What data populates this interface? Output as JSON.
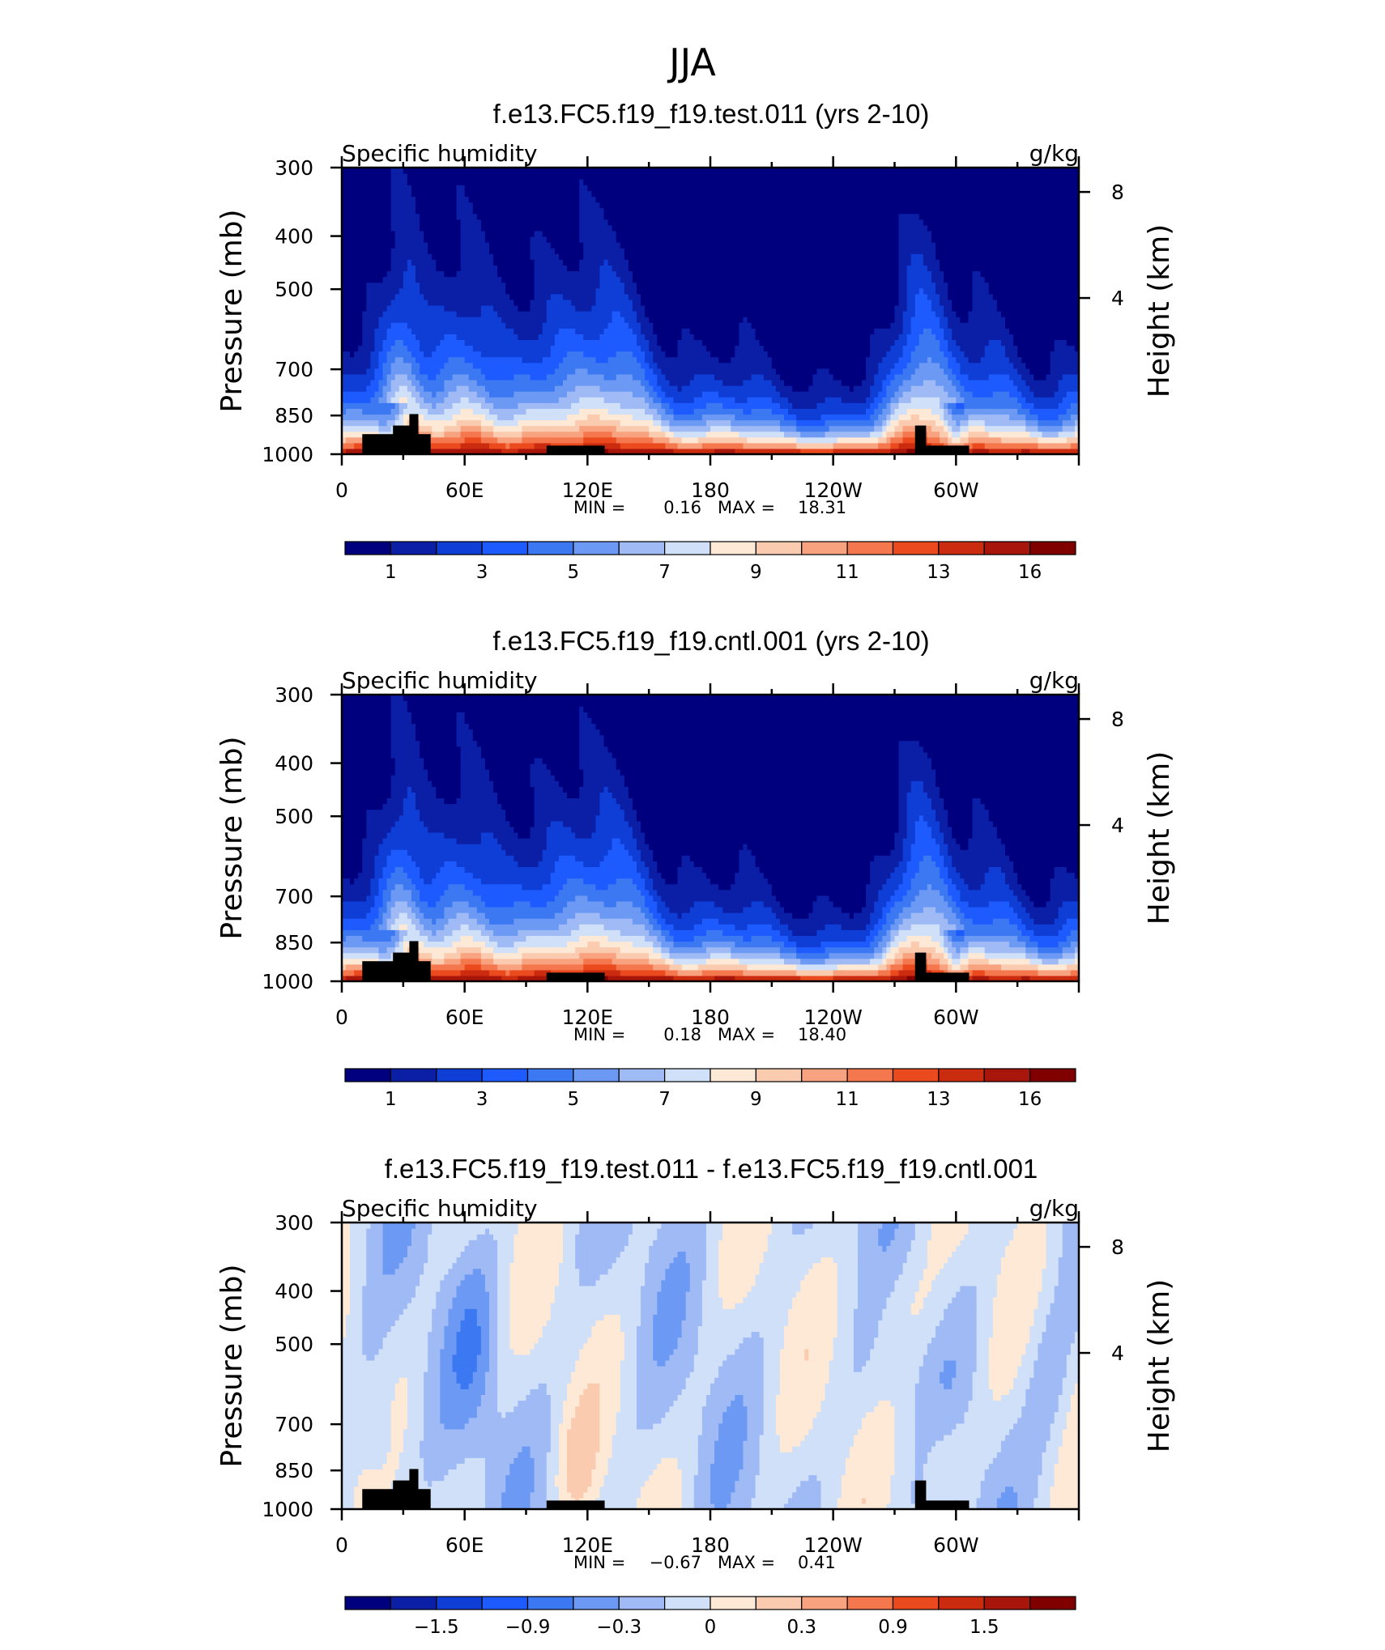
{
  "page": {
    "title": "JJA",
    "palette": [
      "#00007f",
      "#0b1fa6",
      "#0f3ed6",
      "#1e5bff",
      "#3b78f2",
      "#6c99f3",
      "#9fbaf5",
      "#cfe0f8",
      "#fde9d6",
      "#fbcbb0",
      "#f8a27f",
      "#f5774e",
      "#ea4a1e",
      "#cb2b0f",
      "#a8150a",
      "#800000"
    ]
  },
  "chart_data": [
    {
      "type": "heatmap",
      "title": "f.e13.FC5.f19_f19.test.011 (yrs 2-10)",
      "variable_label": "Specific humidity",
      "units_label": "g/kg",
      "ylabel": "Pressure (mb)",
      "y2label": "Height (km)",
      "x_ticks": [
        "0",
        "60E",
        "120E",
        "180",
        "120W",
        "60W"
      ],
      "y_ticks": [
        "300",
        "400",
        "500",
        "700",
        "850",
        "1000"
      ],
      "y2_ticks": [
        "8",
        "4"
      ],
      "stats": {
        "min_label": "MIN =",
        "min": "0.16",
        "max_label": "MAX =",
        "max": "18.31"
      },
      "colorbar": {
        "levels": 16,
        "labels": [
          "1",
          "3",
          "5",
          "7",
          "9",
          "11",
          "13",
          "16"
        ]
      },
      "field": "specific_humidity"
    },
    {
      "type": "heatmap",
      "title": "f.e13.FC5.f19_f19.cntl.001 (yrs 2-10)",
      "variable_label": "Specific humidity",
      "units_label": "g/kg",
      "ylabel": "Pressure (mb)",
      "y2label": "Height (km)",
      "x_ticks": [
        "0",
        "60E",
        "120E",
        "180",
        "120W",
        "60W"
      ],
      "y_ticks": [
        "300",
        "400",
        "500",
        "700",
        "850",
        "1000"
      ],
      "y2_ticks": [
        "8",
        "4"
      ],
      "stats": {
        "min_label": "MIN =",
        "min": "0.18",
        "max_label": "MAX =",
        "max": "18.40"
      },
      "colorbar": {
        "levels": 16,
        "labels": [
          "1",
          "3",
          "5",
          "7",
          "9",
          "11",
          "13",
          "16"
        ]
      },
      "field": "specific_humidity"
    },
    {
      "type": "heatmap",
      "title": "f.e13.FC5.f19_f19.test.011 - f.e13.FC5.f19_f19.cntl.001",
      "variable_label": "Specific humidity",
      "units_label": "g/kg",
      "ylabel": "Pressure (mb)",
      "y2label": "Height (km)",
      "x_ticks": [
        "0",
        "60E",
        "120E",
        "180",
        "120W",
        "60W"
      ],
      "y_ticks": [
        "300",
        "400",
        "500",
        "700",
        "850",
        "1000"
      ],
      "y2_ticks": [
        "8",
        "4"
      ],
      "stats": {
        "min_label": "MIN =",
        "min": "−0.67",
        "max_label": "MAX =",
        "max": "0.41"
      },
      "colorbar": {
        "levels": 16,
        "labels": [
          "−1.5",
          "−0.9",
          "−0.3",
          "0",
          "0.3",
          "0.9",
          "1.5"
        ]
      },
      "field": "difference"
    }
  ]
}
